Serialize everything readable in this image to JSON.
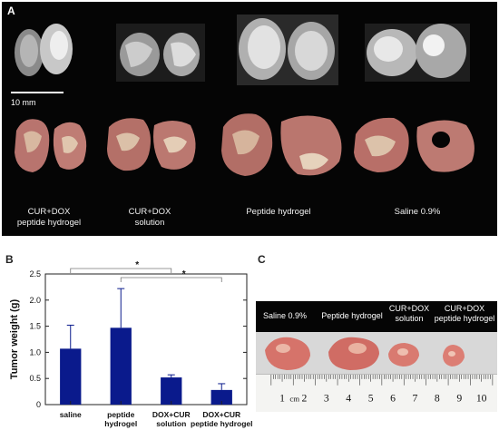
{
  "panel_a": {
    "letter": "A",
    "scale_bar_label": "10 mm",
    "groups": [
      {
        "label_line1": "CUR+DOX",
        "label_line2": "peptide hydrogel"
      },
      {
        "label_line1": "CUR+DOX",
        "label_line2": "solution"
      },
      {
        "label_line1": "Peptide hydrogel",
        "label_line2": ""
      },
      {
        "label_line1": "Saline 0.9%",
        "label_line2": ""
      }
    ],
    "colors": {
      "background": "#050505",
      "tissue": "#b8746e",
      "scan": "#cfcfcf"
    }
  },
  "panel_b": {
    "letter": "B",
    "significance_marker": "*"
  },
  "chart_data": {
    "type": "bar",
    "categories": [
      "saline",
      "peptide hydrogel",
      "DOX+CUR solution",
      "DOX+CUR peptide hydrogel"
    ],
    "category_lines": [
      [
        "saline"
      ],
      [
        "peptide",
        "hydrogel"
      ],
      [
        "DOX+CUR",
        "solution"
      ],
      [
        "DOX+CUR",
        "peptide hydrogel"
      ]
    ],
    "values": [
      1.07,
      1.47,
      0.52,
      0.28
    ],
    "errors": [
      0.45,
      0.75,
      0.05,
      0.12
    ],
    "ylabel": "Tumor weight (g)",
    "xlabel": "",
    "ylim": [
      0,
      2.5
    ],
    "yticks": [
      0,
      0.5,
      1.0,
      1.5,
      2.0,
      2.5
    ],
    "ytick_labels": [
      "0",
      "0.5",
      "1.0",
      "1.5",
      "2.0",
      "2.5"
    ],
    "significance": [
      {
        "from": "saline",
        "to": "DOX+CUR solution",
        "marker": "*"
      },
      {
        "from": "peptide hydrogel",
        "to": "DOX+CUR peptide hydrogel",
        "marker": "*"
      }
    ],
    "bar_color": "#0a1a8c",
    "grid": false
  },
  "panel_c": {
    "letter": "C",
    "labels": [
      {
        "line1": "Saline 0.9%",
        "line2": ""
      },
      {
        "line1": "Peptide hydrogel",
        "line2": ""
      },
      {
        "line1": "CUR+DOX",
        "line2": "solution"
      },
      {
        "line1": "CUR+DOX",
        "line2": "peptide hydrogel"
      }
    ],
    "ruler_unit": "cm",
    "ruler_numbers": [
      "1",
      "2",
      "3",
      "4",
      "5",
      "6",
      "7",
      "8",
      "9",
      "10"
    ],
    "colors": {
      "tumor": "#d9776e",
      "ruler": "#f4f4f2"
    }
  }
}
